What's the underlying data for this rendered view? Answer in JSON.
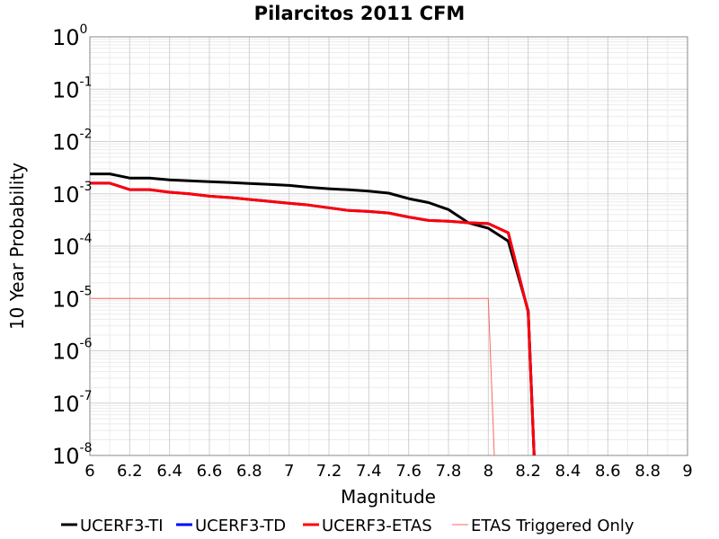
{
  "chart_data": {
    "type": "line",
    "title": "Pilarcitos 2011 CFM",
    "xlabel": "Magnitude",
    "ylabel": "10 Year Probability",
    "xlim": [
      6,
      9
    ],
    "ylim": [
      1e-08,
      1
    ],
    "yscale": "log",
    "x_ticks": [
      "6",
      "6.2",
      "6.4",
      "6.6",
      "6.8",
      "7",
      "7.2",
      "7.4",
      "7.6",
      "7.8",
      "8",
      "8.2",
      "8.4",
      "8.6",
      "8.8",
      "9"
    ],
    "y_ticks": [
      {
        "base": "10",
        "exp": "0"
      },
      {
        "base": "10",
        "exp": "-1"
      },
      {
        "base": "10",
        "exp": "-2"
      },
      {
        "base": "10",
        "exp": "-3"
      },
      {
        "base": "10",
        "exp": "-4"
      },
      {
        "base": "10",
        "exp": "-5"
      },
      {
        "base": "10",
        "exp": "-6"
      },
      {
        "base": "10",
        "exp": "-7"
      },
      {
        "base": "10",
        "exp": "-8"
      }
    ],
    "grid": true,
    "legend_position": "bottom",
    "series": [
      {
        "name": "UCERF3-TI",
        "color": "#000000",
        "x": [
          6.0,
          6.1,
          6.2,
          6.3,
          6.4,
          6.5,
          6.6,
          6.7,
          6.8,
          6.9,
          7.0,
          7.1,
          7.2,
          7.3,
          7.4,
          7.5,
          7.6,
          7.7,
          7.8,
          7.9,
          8.0,
          8.1,
          8.2,
          8.23
        ],
        "y": [
          0.0024,
          0.0024,
          0.002,
          0.002,
          0.00185,
          0.00178,
          0.0017,
          0.00165,
          0.00158,
          0.00152,
          0.00145,
          0.00133,
          0.00125,
          0.00119,
          0.00113,
          0.00103,
          0.00081,
          0.00068,
          0.0005,
          0.00028,
          0.00022,
          0.000125,
          5.8e-06,
          1e-08
        ]
      },
      {
        "name": "UCERF3-TD",
        "color": "#0000ff",
        "x": [
          6.0,
          6.1,
          6.2,
          6.3,
          6.4,
          6.5,
          6.6,
          6.7,
          6.8,
          6.9,
          7.0,
          7.1,
          7.2,
          7.3,
          7.4,
          7.5,
          7.6,
          7.7,
          7.8,
          7.9,
          8.0,
          8.1,
          8.2,
          8.23
        ],
        "y": [
          0.0016,
          0.0016,
          0.0012,
          0.0012,
          0.00107,
          0.001,
          0.0009,
          0.00085,
          0.00078,
          0.00072,
          0.00066,
          0.00061,
          0.00054,
          0.00048,
          0.00046,
          0.00043,
          0.00036,
          0.00031,
          0.0003,
          0.00028,
          0.00027,
          0.00018,
          5.5e-06,
          1e-08
        ]
      },
      {
        "name": "UCERF3-ETAS",
        "color": "#ff0000",
        "x": [
          6.0,
          6.1,
          6.2,
          6.3,
          6.4,
          6.5,
          6.6,
          6.7,
          6.8,
          6.9,
          7.0,
          7.1,
          7.2,
          7.3,
          7.4,
          7.5,
          7.6,
          7.7,
          7.8,
          7.9,
          8.0,
          8.1,
          8.2,
          8.23
        ],
        "y": [
          0.0016,
          0.0016,
          0.0012,
          0.0012,
          0.00107,
          0.001,
          0.0009,
          0.00085,
          0.00078,
          0.00072,
          0.00066,
          0.00061,
          0.00054,
          0.00048,
          0.00046,
          0.00043,
          0.00036,
          0.00031,
          0.0003,
          0.00028,
          0.00027,
          0.00018,
          5.5e-06,
          1e-08
        ]
      },
      {
        "name": "ETAS Triggered Only",
        "color": "#ff6666",
        "x": [
          6.0,
          8.0,
          8.03
        ],
        "y": [
          1e-05,
          1e-05,
          1e-08
        ]
      }
    ]
  }
}
